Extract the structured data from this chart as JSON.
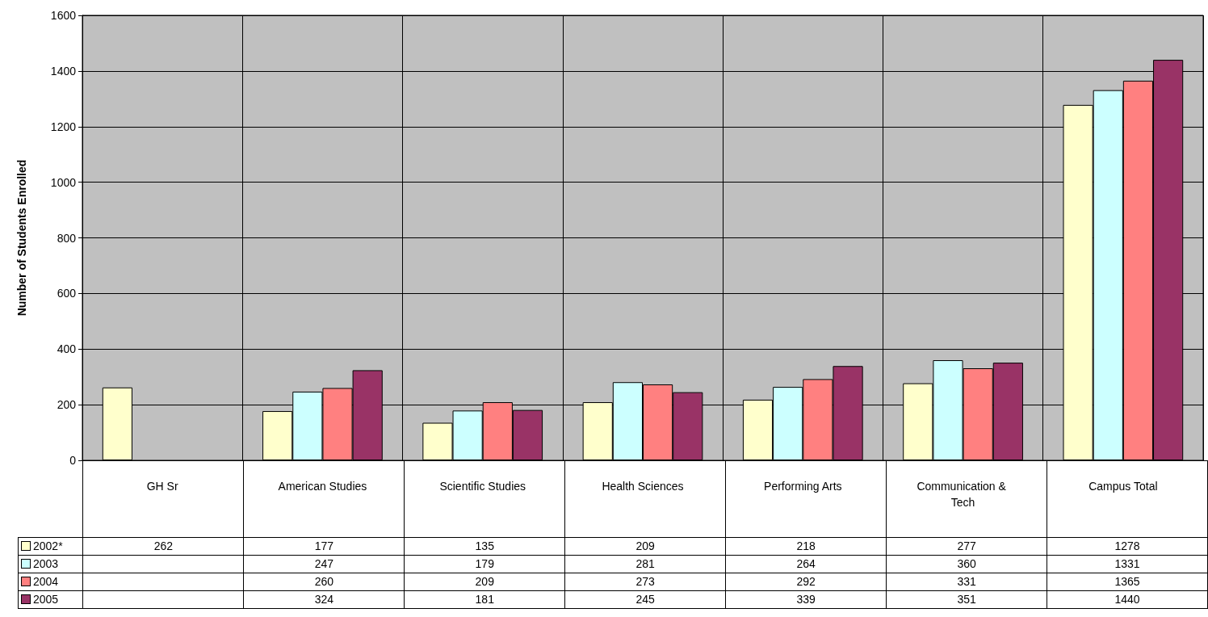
{
  "chart_data": {
    "type": "bar",
    "ylabel": "Number of Students Enrolled",
    "categories": [
      "GH Sr",
      "American Studies",
      "Scientific Studies",
      "Health Sciences",
      "Performing Arts",
      "Communication & Tech",
      "Campus Total"
    ],
    "series": [
      {
        "name": "2002*",
        "color": "#ffffcc",
        "values": [
          262,
          177,
          135,
          209,
          218,
          277,
          1278
        ]
      },
      {
        "name": "2003",
        "color": "#ccffff",
        "values": [
          null,
          247,
          179,
          281,
          264,
          360,
          1331
        ]
      },
      {
        "name": "2004",
        "color": "#ff8080",
        "values": [
          null,
          260,
          209,
          273,
          292,
          331,
          1365
        ]
      },
      {
        "name": "2005",
        "color": "#993366",
        "values": [
          null,
          324,
          181,
          245,
          339,
          351,
          1440
        ]
      }
    ],
    "ylim": [
      0,
      1600
    ],
    "yticks": [
      0,
      200,
      400,
      600,
      800,
      1000,
      1200,
      1400,
      1600
    ],
    "grid": true,
    "legend": "bottom left",
    "data_labels": true
  }
}
